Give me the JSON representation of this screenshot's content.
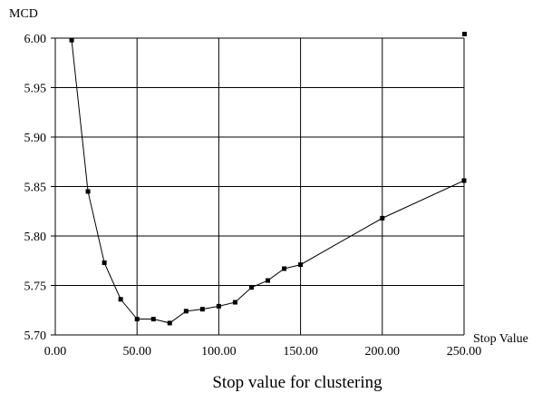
{
  "chart_data": {
    "type": "line",
    "title": "",
    "xlabel": "Stop value for clustering",
    "ylabel": "MCD",
    "x_axis_name": "Stop Value",
    "xlim": [
      0,
      250
    ],
    "ylim": [
      5.7,
      6.0
    ],
    "x_ticks": [
      "0.00",
      "50.00",
      "100.00",
      "150.00",
      "200.00",
      "250.00"
    ],
    "y_ticks": [
      "5.70",
      "5.75",
      "5.80",
      "5.85",
      "5.90",
      "5.95",
      "6.00"
    ],
    "grid": true,
    "legend": "top-right, marker only",
    "series": [
      {
        "x": [
          10,
          20,
          30,
          40,
          50,
          60,
          70,
          80,
          90,
          100,
          110,
          120,
          130,
          140,
          150,
          200,
          250
        ],
        "y": [
          5.998,
          5.845,
          5.773,
          5.736,
          5.716,
          5.716,
          5.712,
          5.724,
          5.726,
          5.729,
          5.733,
          5.748,
          5.755,
          5.767,
          5.771,
          5.818,
          5.856
        ],
        "color": "#000000",
        "marker": "square"
      }
    ]
  }
}
